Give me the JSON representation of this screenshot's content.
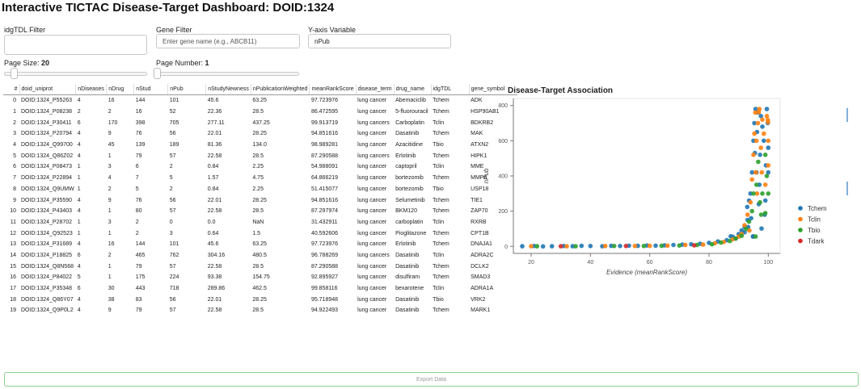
{
  "title": "Interactive TICTAC Disease-Target Dashboard: DOID:1324",
  "filters": {
    "tdl_label": "idgTDL Filter",
    "gene_label": "Gene Filter",
    "gene_placeholder": "Enter gene name (e.g., ABCB11)",
    "yaxis_label": "Y-axis Variable",
    "yaxis_value": "nPub"
  },
  "page_size": {
    "label": "Page Size:",
    "value": "20",
    "fraction": 0.05
  },
  "page_number": {
    "label": "Page Number:",
    "value": "1",
    "fraction": 0.0
  },
  "table": {
    "columns": [
      "#",
      "doid_uniprot",
      "nDiseases",
      "nDrug",
      "nStud",
      "nPub",
      "nStudyNewness",
      "nPublicationWeighted",
      "meanRankScore",
      "disease_term",
      "drug_name",
      "idgTDL",
      "gene_symbol"
    ],
    "rows": [
      [
        "0",
        "DOID:1324_P55263",
        "4",
        "16",
        "144",
        "101",
        "45.6",
        "63.25",
        "97.723976",
        "lung cancer",
        "Abemaciclib",
        "Tchem",
        "ADK"
      ],
      [
        "1",
        "DOID:1324_P08238",
        "2",
        "2",
        "16",
        "52",
        "22.36",
        "28.5",
        "86.472595",
        "lung cancer",
        "5-fluorouracil",
        "Tchem",
        "HSP90AB1"
      ],
      [
        "2",
        "DOID:1324_P30411",
        "6",
        "170",
        "398",
        "705",
        "277.11",
        "437.25",
        "99.913719",
        "lung cancers",
        "Carboplatin",
        "Tclin",
        "BDKRB2"
      ],
      [
        "3",
        "DOID:1324_P20794",
        "4",
        "9",
        "76",
        "56",
        "22.01",
        "28.25",
        "94.851616",
        "lung cancer",
        "Dasatinib",
        "Tchem",
        "MAK"
      ],
      [
        "4",
        "DOID:1324_Q99700",
        "4",
        "45",
        "139",
        "189",
        "81.36",
        "134.0",
        "98.989281",
        "lung cancer",
        "Azacitidine",
        "Tbio",
        "ATXN2"
      ],
      [
        "5",
        "DOID:1324_Q86Z02",
        "4",
        "1",
        "79",
        "57",
        "22.58",
        "28.5",
        "87.290588",
        "lung cancers",
        "Erlotinib",
        "Tchem",
        "HIPK1"
      ],
      [
        "6",
        "DOID:1324_P08473",
        "1",
        "3",
        "6",
        "2",
        "0.84",
        "2.25",
        "54.988091",
        "lung cancer",
        "captopril",
        "Tclin",
        "MME"
      ],
      [
        "7",
        "DOID:1324_P22894",
        "1",
        "4",
        "7",
        "5",
        "1.57",
        "4.75",
        "64.866219",
        "lung cancer",
        "bortezomib",
        "Tchem",
        "MMP8"
      ],
      [
        "8",
        "DOID:1324_Q9UMW",
        "1",
        "2",
        "5",
        "2",
        "0.84",
        "2.25",
        "51.415077",
        "lung cancer",
        "bortezomib",
        "Tbio",
        "USP18"
      ],
      [
        "9",
        "DOID:1324_P35590",
        "4",
        "9",
        "76",
        "56",
        "22.01",
        "28.25",
        "94.851616",
        "lung cancer",
        "Selumetinib",
        "Tchem",
        "TIE1"
      ],
      [
        "10",
        "DOID:1324_P43403",
        "4",
        "1",
        "80",
        "57",
        "22.58",
        "28.5",
        "87.297974",
        "lung cancer",
        "BKM120",
        "Tchem",
        "ZAP70"
      ],
      [
        "11",
        "DOID:1324_P28702",
        "1",
        "3",
        "2",
        "0",
        "0.0",
        "NaN",
        "31.432911",
        "lung cancer",
        "carboplatin",
        "Tclin",
        "RXRB"
      ],
      [
        "12",
        "DOID:1324_Q92523",
        "1",
        "1",
        "2",
        "3",
        "0.64",
        "1.5",
        "40.592606",
        "lung cancer",
        "Pioglitazone",
        "Tchem",
        "CPT1B"
      ],
      [
        "13",
        "DOID:1324_P31689",
        "4",
        "16",
        "144",
        "101",
        "45.6",
        "63.25",
        "97.723976",
        "lung cancer",
        "Erlotinib",
        "Tchem",
        "DNAJA1"
      ],
      [
        "14",
        "DOID:1324_P18825",
        "6",
        "2",
        "465",
        "762",
        "304.16",
        "480.5",
        "96.788269",
        "lung cancers",
        "Dasatinib",
        "Tclin",
        "ADRA2C"
      ],
      [
        "15",
        "DOID:1324_Q8N568",
        "4",
        "1",
        "79",
        "57",
        "22.58",
        "28.5",
        "87.290588",
        "lung cancer",
        "Dasatinib",
        "Tchem",
        "DCLK2"
      ],
      [
        "16",
        "DOID:1324_P84022",
        "5",
        "1",
        "175",
        "224",
        "93.38",
        "154.75",
        "92.895927",
        "lung cancer",
        "disulfiram",
        "Tchem",
        "SMAD3"
      ],
      [
        "17",
        "DOID:1324_P35348",
        "6",
        "30",
        "443",
        "718",
        "289.86",
        "462.5",
        "99.858116",
        "lung cancer",
        "bexarotene",
        "Tclin",
        "ADRA1A"
      ],
      [
        "18",
        "DOID:1324_Q86Y07",
        "4",
        "38",
        "83",
        "56",
        "22.01",
        "28.25",
        "95.718948",
        "lung cancer",
        "Dasatinib",
        "Tbio",
        "VRK2"
      ],
      [
        "19",
        "DOID:1324_Q9P0L2",
        "4",
        "9",
        "79",
        "57",
        "22.58",
        "28.5",
        "94.922493",
        "lung cancer",
        "Dasatinib",
        "Tchem",
        "MARK1"
      ]
    ]
  },
  "chart_data": {
    "type": "scatter",
    "title": "Disease-Target Association",
    "xlabel": "Evidence (meanRankScore)",
    "ylabel": "nPub",
    "xlim": [
      14,
      104
    ],
    "ylim": [
      -40,
      840
    ],
    "xticks": [
      20,
      40,
      60,
      80,
      100
    ],
    "yticks": [
      0,
      200,
      400,
      600,
      800
    ],
    "grid": false,
    "legend": "right",
    "series": [
      {
        "name": "Tchem",
        "color": "#1f77b4",
        "points": [
          [
            17,
            1
          ],
          [
            21,
            2
          ],
          [
            24,
            0
          ],
          [
            27,
            1
          ],
          [
            31,
            2
          ],
          [
            34,
            1
          ],
          [
            37,
            3
          ],
          [
            40,
            2
          ],
          [
            44,
            1
          ],
          [
            47,
            3
          ],
          [
            50,
            2
          ],
          [
            53,
            4
          ],
          [
            56,
            3
          ],
          [
            59,
            5
          ],
          [
            62,
            4
          ],
          [
            65,
            6
          ],
          [
            68,
            8
          ],
          [
            71,
            10
          ],
          [
            74,
            12
          ],
          [
            77,
            15
          ],
          [
            80,
            20
          ],
          [
            83,
            28
          ],
          [
            86,
            35
          ],
          [
            87.3,
            57
          ],
          [
            88,
            55
          ],
          [
            89,
            45
          ],
          [
            90,
            70
          ],
          [
            91,
            90
          ],
          [
            92,
            110
          ],
          [
            92.9,
            224
          ],
          [
            93,
            150
          ],
          [
            93.5,
            260
          ],
          [
            94,
            300
          ],
          [
            94.5,
            420
          ],
          [
            94.85,
            56
          ],
          [
            94.9,
            57
          ],
          [
            95,
            600
          ],
          [
            95.3,
            700
          ],
          [
            95.7,
            780
          ],
          [
            96,
            420
          ],
          [
            96.2,
            650
          ],
          [
            96.5,
            760
          ],
          [
            97,
            350
          ],
          [
            97.2,
            520
          ],
          [
            97.72,
            101
          ],
          [
            98,
            680
          ],
          [
            98.5,
            600
          ],
          [
            99,
            260
          ],
          [
            99.5,
            780
          ],
          [
            100,
            420
          ],
          [
            100,
            560
          ],
          [
            99.8,
            700
          ],
          [
            98.8,
            180
          ],
          [
            95.5,
            530
          ],
          [
            96.8,
            240
          ],
          [
            97.5,
            740
          ],
          [
            99.2,
            460
          ],
          [
            94.2,
            160
          ],
          [
            93.2,
            110
          ],
          [
            92,
            80
          ]
        ]
      },
      {
        "name": "Tclin",
        "color": "#ff7f0e",
        "points": [
          [
            20,
            1
          ],
          [
            32,
            1
          ],
          [
            45,
            2
          ],
          [
            55,
            2
          ],
          [
            60,
            3
          ],
          [
            66,
            4
          ],
          [
            72,
            8
          ],
          [
            78,
            10
          ],
          [
            82,
            18
          ],
          [
            85,
            25
          ],
          [
            88,
            40
          ],
          [
            90,
            55
          ],
          [
            92,
            120
          ],
          [
            93,
            180
          ],
          [
            94,
            250
          ],
          [
            94.5,
            380
          ],
          [
            95,
            520
          ],
          [
            95.3,
            640
          ],
          [
            95.6,
            760
          ],
          [
            96,
            600
          ],
          [
            96.5,
            700
          ],
          [
            96.79,
            762
          ],
          [
            97,
            780
          ],
          [
            97.5,
            560
          ],
          [
            98,
            720
          ],
          [
            98.5,
            640
          ],
          [
            99,
            350
          ],
          [
            99.5,
            740
          ],
          [
            99.86,
            718
          ],
          [
            99.91,
            705
          ],
          [
            100,
            600
          ],
          [
            100,
            460
          ],
          [
            96.2,
            300
          ],
          [
            97.8,
            420
          ],
          [
            95.8,
            420
          ],
          [
            93.6,
            90
          ],
          [
            91,
            70
          ]
        ]
      },
      {
        "name": "Tbio",
        "color": "#2ca02c",
        "points": [
          [
            22,
            1
          ],
          [
            35,
            1
          ],
          [
            48,
            2
          ],
          [
            58,
            2
          ],
          [
            64,
            3
          ],
          [
            70,
            5
          ],
          [
            76,
            8
          ],
          [
            81,
            12
          ],
          [
            84,
            22
          ],
          [
            87,
            30
          ],
          [
            89,
            45
          ],
          [
            91,
            60
          ],
          [
            92.5,
            100
          ],
          [
            93.5,
            140
          ],
          [
            94.5,
            200
          ],
          [
            95,
            300
          ],
          [
            95.72,
            56
          ],
          [
            96,
            350
          ],
          [
            96.6,
            480
          ],
          [
            97.2,
            250
          ],
          [
            98,
            300
          ],
          [
            98.99,
            189
          ],
          [
            99,
            520
          ],
          [
            99.5,
            400
          ],
          [
            100,
            300
          ],
          [
            97.6,
            180
          ]
        ]
      },
      {
        "name": "Tdark",
        "color": "#d62728",
        "points": [
          [
            30,
            1
          ],
          [
            52,
            2
          ],
          [
            75,
            6
          ]
        ]
      }
    ]
  }
}
